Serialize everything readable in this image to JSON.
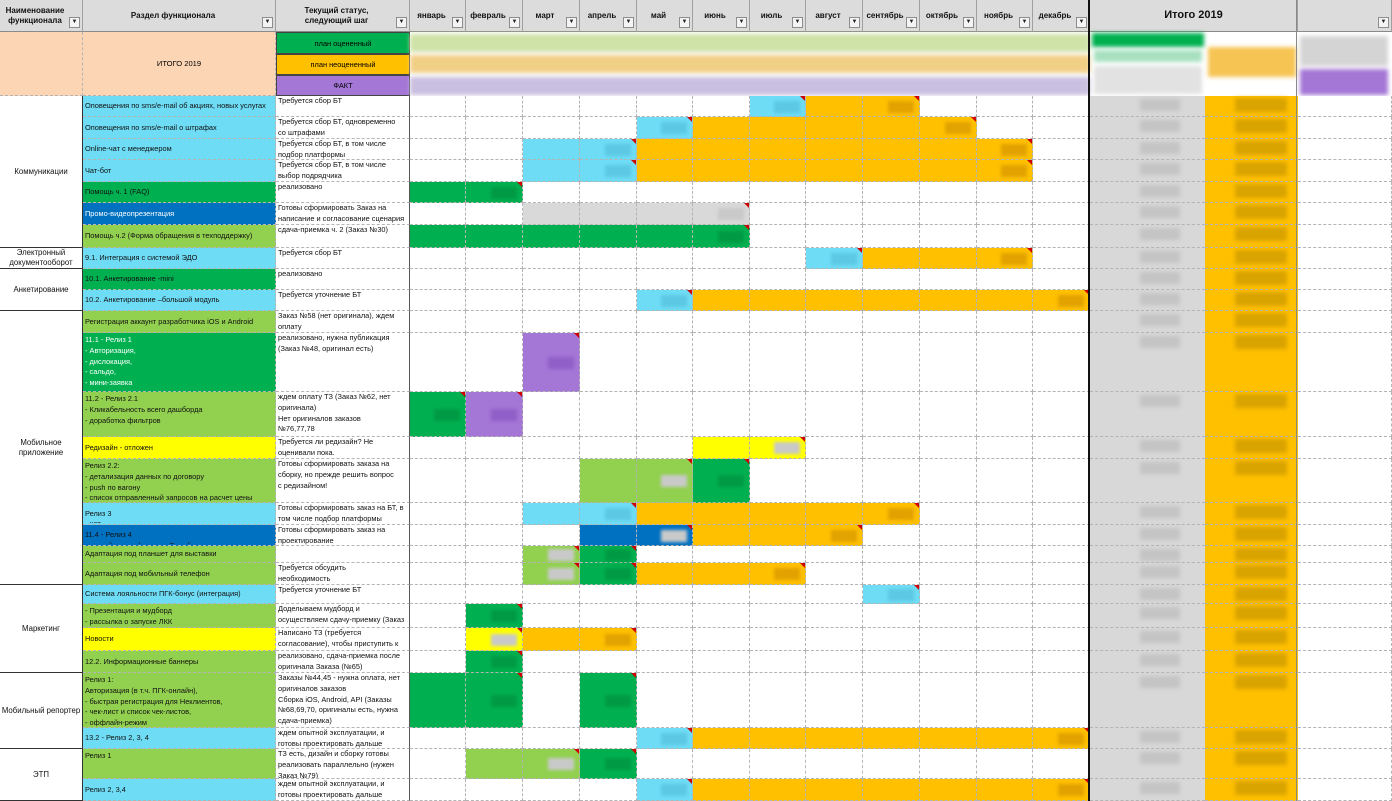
{
  "headers": {
    "col_a": "Наименование\nфункционала",
    "col_b": "Раздел функционала",
    "col_c": "Текущий статус,\nследующий шаг",
    "months": [
      "январь",
      "февраль",
      "март",
      "апрель",
      "май",
      "июнь",
      "июль",
      "август",
      "сентябрь",
      "октябрь",
      "ноябрь",
      "декабрь"
    ],
    "total": "Итого 2019"
  },
  "summary": {
    "title": "ИТОГО 2019",
    "plan_rated": "план оцененный",
    "plan_unrated": "план неоцененный",
    "fact": "ФАКТ"
  },
  "colors": {
    "cyan": "#6fdcf5",
    "lightgreen": "#92d050",
    "green": "#00b050",
    "blue": "#0070c0",
    "purple": "#a476d6",
    "orange": "#ffc000",
    "yellow": "#ffff00",
    "gray": "#d9d9d9",
    "peach": "#fcd5b4"
  },
  "groups": [
    {
      "label": "Коммуникации"
    },
    {
      "label": "Электронный\nдокументооборот"
    },
    {
      "label": "Анкетирование"
    },
    {
      "label": "Мобильное\nприложение"
    },
    {
      "label": "Маркетинг"
    },
    {
      "label": "Мобильный репортер"
    },
    {
      "label": "ЭТП"
    }
  ],
  "rows": [
    {
      "section": "Оповещения по sms/e-mail об акциях, новых услугах",
      "section_color": "cyan",
      "status": "Требуется сбор БТ",
      "bars": [
        {
          "from": 6,
          "to": 6,
          "c": "cyan"
        },
        {
          "from": 7,
          "to": 8,
          "c": "orange"
        }
      ]
    },
    {
      "section": "Оповещения по sms/e-mail о штрафах",
      "section_color": "cyan",
      "status": "Требуется сбор БТ, одновременно\nсо штрафами",
      "bars": [
        {
          "from": 4,
          "to": 4,
          "c": "cyan"
        },
        {
          "from": 5,
          "to": 9,
          "c": "orange"
        }
      ]
    },
    {
      "section": "Online-чат с менеджером",
      "section_color": "cyan",
      "status": "Требуется сбор БТ, в том числе\nподбор платформы",
      "bars": [
        {
          "from": 2,
          "to": 3,
          "c": "cyan"
        },
        {
          "from": 4,
          "to": 10,
          "c": "orange"
        }
      ]
    },
    {
      "section": "Чат-бот",
      "section_color": "cyan",
      "status": "Требуется сбор БТ, в том числе\nвыбор подрядчика",
      "bars": [
        {
          "from": 2,
          "to": 3,
          "c": "cyan"
        },
        {
          "from": 4,
          "to": 10,
          "c": "orange"
        }
      ]
    },
    {
      "section": "Помощь ч. 1 (FAQ)",
      "section_color": "green",
      "status": "реализовано",
      "bars": [
        {
          "from": 0,
          "to": 1,
          "c": "green"
        }
      ]
    },
    {
      "section": "Промо-видеопрезентация",
      "section_color": "blue",
      "section_white": true,
      "status": "Готовы сформировать Заказ на\nнаписание и согласование сценария",
      "bars": [
        {
          "from": 2,
          "to": 5,
          "c": "gray"
        }
      ]
    },
    {
      "section": "Помощь ч.2 (Форма обращения в техподдержку)",
      "section_color": "lightgreen",
      "status": "сдача-приемка ч. 2 (Заказ №30)",
      "bars": [
        {
          "from": 0,
          "to": 5,
          "c": "green"
        }
      ]
    },
    {
      "section": "9.1. Интеграция с системой ЭДО",
      "section_color": "cyan",
      "status": "Требуется сбор БТ",
      "bars": [
        {
          "from": 7,
          "to": 7,
          "c": "cyan"
        },
        {
          "from": 8,
          "to": 10,
          "c": "orange"
        }
      ]
    },
    {
      "section": "10.1. Анкетирование -mini",
      "section_color": "green",
      "status": "реализовано",
      "bars": []
    },
    {
      "section": "10.2. Анкетирование –большой модуль",
      "section_color": "cyan",
      "status": "Требуется уточнение  БТ",
      "bars": [
        {
          "from": 4,
          "to": 4,
          "c": "cyan"
        },
        {
          "from": 5,
          "to": 11,
          "c": "orange"
        }
      ]
    },
    {
      "section": "Регистрация аккаунт разработчика iOS и Android",
      "section_color": "lightgreen",
      "status": "Заказ №58 (нет оригинала), ждем\nоплату",
      "bars": []
    },
    {
      "section": "11.1 - Релиз 1\n- Авторизация,\n- дислокация,\n- сальдо,\n- мини-заявка",
      "section_color": "green",
      "section_white": true,
      "status": "реализовано, нужна публикация\n(Заказ №48, оригинал есть)",
      "bars": [
        {
          "from": 2,
          "to": 2,
          "c": "purple"
        }
      ]
    },
    {
      "section": "11.2 - Релиз 2.1\n- Кликабельность всего дашборда\n- доработка фильтров",
      "section_color": "lightgreen",
      "status": "ждем оплату ТЗ (Заказ №62, нет\nоригинала)\nНет оригиналов заказов\n№76,77,78",
      "bars": [
        {
          "from": 0,
          "to": 0,
          "c": "green"
        },
        {
          "from": 1,
          "to": 1,
          "c": "purple"
        }
      ]
    },
    {
      "section": "Редизайн - отложен",
      "section_color": "yellow",
      "status": "Требуется ли редизайн? Не\nоценивали пока.",
      "bars": [
        {
          "from": 5,
          "to": 6,
          "c": "yellow"
        }
      ]
    },
    {
      "section": "Релиз 2.2:\n- детализация данных по договору\n- push по вагону\n- список отправленный запросов на расчет цены",
      "section_color": "lightgreen",
      "status": "Готовы сформировать заказа на\nсборку, но прежде решить вопрос\nс редизайном!",
      "bars": [
        {
          "from": 3,
          "to": 4,
          "c": "lightgreen"
        },
        {
          "from": 5,
          "to": 5,
          "c": "green"
        }
      ]
    },
    {
      "section": "Релиз 3\n- чат",
      "section_color": "cyan",
      "status": "Готовы сформировать заказ на БТ, в\nтом числе подбор платформы",
      "bars": [
        {
          "from": 2,
          "to": 3,
          "c": "cyan"
        },
        {
          "from": 4,
          "to": 8,
          "c": "orange"
        }
      ]
    },
    {
      "section": "11.4 - Релиз 4\nнастройки, профиль, on-Boarding, виджет",
      "section_color": "blue",
      "status": "Готовы сформировать заказ на\nпроектирование",
      "bars": [
        {
          "from": 3,
          "to": 4,
          "c": "blue"
        },
        {
          "from": 5,
          "to": 7,
          "c": "orange"
        }
      ]
    },
    {
      "section": "Адаптация под планшет для выставки",
      "section_color": "lightgreen",
      "status": "",
      "bars": [
        {
          "from": 2,
          "to": 2,
          "c": "lightgreen"
        },
        {
          "from": 3,
          "to": 3,
          "c": "green"
        }
      ]
    },
    {
      "section": "Адаптация под мобильный телефон",
      "section_color": "lightgreen",
      "status": "Требуется обсудить\nнеобходимость",
      "bars": [
        {
          "from": 2,
          "to": 2,
          "c": "lightgreen"
        },
        {
          "from": 3,
          "to": 3,
          "c": "green"
        },
        {
          "from": 4,
          "to": 6,
          "c": "orange"
        }
      ]
    },
    {
      "section": "Система лояльности ПГК-бонус (интеграция)",
      "section_color": "cyan",
      "status": "Требуется уточнение  БТ",
      "bars": [
        {
          "from": 8,
          "to": 8,
          "c": "cyan"
        }
      ]
    },
    {
      "section": "- Презентация и мудборд\n- рассылка о запуске ЛКК",
      "section_color": "lightgreen",
      "status": "Доделываем мудборд и\nосуществляем сдачу-приемку (Заказ",
      "bars": [
        {
          "from": 1,
          "to": 1,
          "c": "green"
        }
      ]
    },
    {
      "section": "Новости",
      "section_color": "yellow",
      "status": "Написано ТЗ (требуется\nсогласование), чтобы приступить к",
      "bars": [
        {
          "from": 1,
          "to": 1,
          "c": "yellow"
        },
        {
          "from": 2,
          "to": 3,
          "c": "orange"
        }
      ]
    },
    {
      "section": "12.2. Информационные баннеры",
      "section_color": "lightgreen",
      "status": "реализовано, сдача-приемка после\nоригинала Заказа (№65)",
      "bars": [
        {
          "from": 1,
          "to": 1,
          "c": "green"
        }
      ]
    },
    {
      "section": " Релиз 1:\nАвторизация (в т.ч. ПГК-онлайн),\n- быстрая регистрация для Неклиентов,\n- чек-лист и список чек-листов,\n- оффлайн-режим",
      "section_color": "lightgreen",
      "status": "Заказы №44,45 - нужна оплата, нет\nоригиналов заказов\nСборка iOS, Android, API (Заказы\n№68,69,70, оригиналы есть, нужна\nсдача-приемка)",
      "bars": [
        {
          "from": 0,
          "to": 1,
          "c": "green"
        },
        {
          "from": 3,
          "to": 3,
          "c": "green"
        }
      ]
    },
    {
      "section": "13.2 - Релиз 2, 3, 4",
      "section_color": "cyan",
      "status": "ждем опытной эксплуатации, и\nготовы проектировать дальше",
      "bars": [
        {
          "from": 4,
          "to": 4,
          "c": "cyan"
        },
        {
          "from": 5,
          "to": 11,
          "c": "orange"
        }
      ]
    },
    {
      "section": "Релиз 1",
      "section_color": "lightgreen",
      "status": "ТЗ есть, дизайн и сборку готовы\nреализовать параллельно (нужен\nЗаказ №79)",
      "bars": [
        {
          "from": 1,
          "to": 2,
          "c": "lightgreen"
        },
        {
          "from": 3,
          "to": 3,
          "c": "green"
        }
      ]
    },
    {
      "section": "Релиз 2, 3,4",
      "section_color": "cyan",
      "status": "ждем опытной эксплуатации, и\nготовы проектировать дальше",
      "bars": [
        {
          "from": 4,
          "to": 4,
          "c": "cyan"
        },
        {
          "from": 5,
          "to": 11,
          "c": "orange"
        }
      ]
    }
  ]
}
